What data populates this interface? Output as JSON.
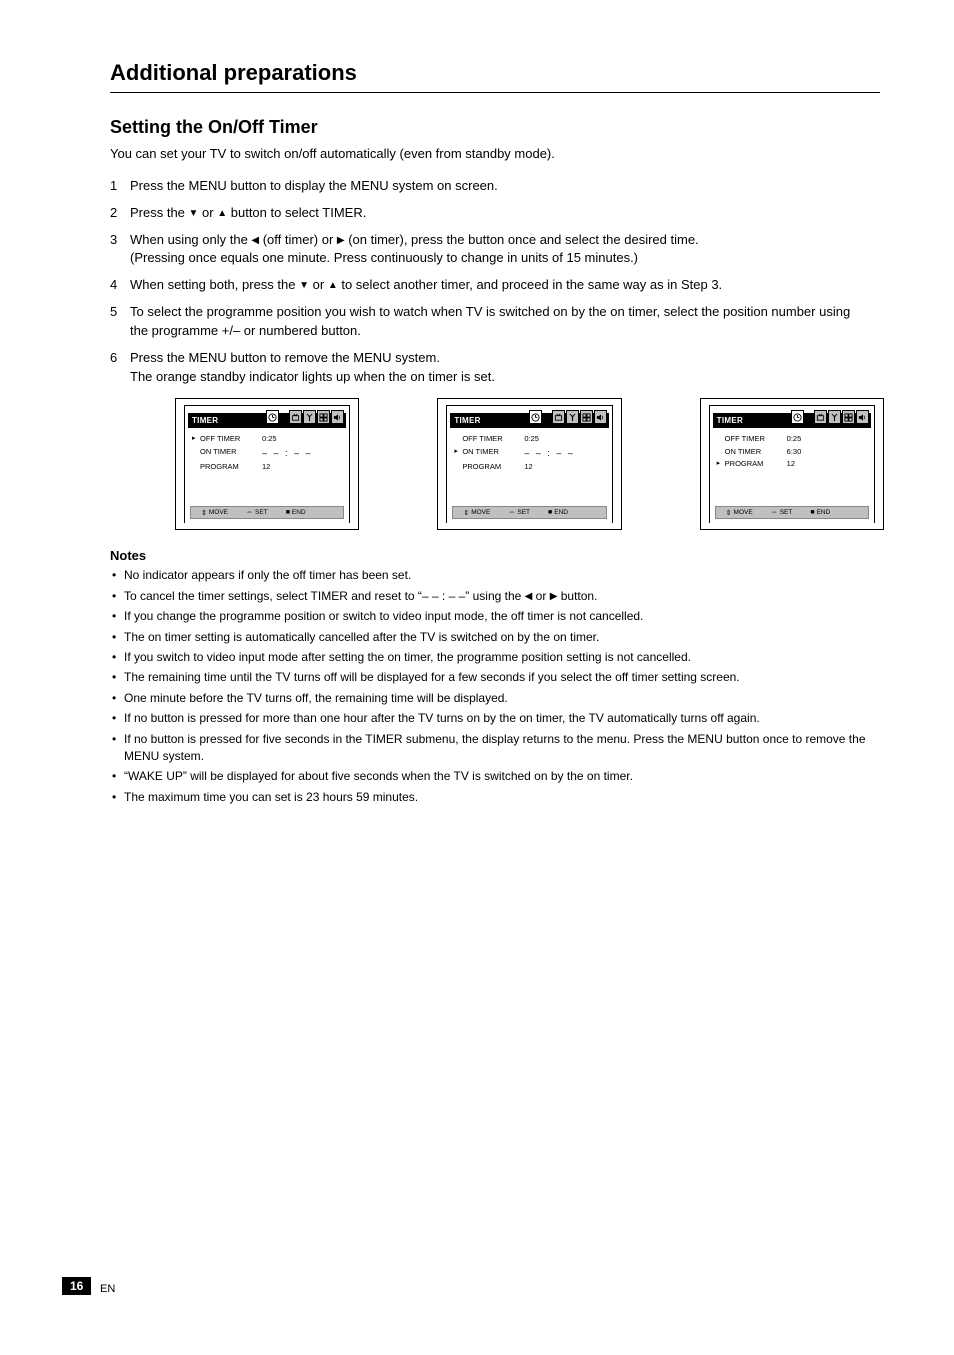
{
  "section_heading": "Additional preparations",
  "feature": {
    "title": "Setting the On/Off Timer",
    "description": "You can set your TV to switch on/off automatically (even from standby mode)."
  },
  "steps": [
    {
      "n": "1",
      "text": "Press the MENU button to display the MENU system on screen."
    },
    {
      "n": "2",
      "text": "Press the <tri>▼</tri> or <tri>▲</tri> button to select TIMER."
    },
    {
      "n": "3",
      "text": "When using only the <tri>◀</tri> (off timer) or <tri>▶</tri> (on timer), press the button once and select the desired time.\n(Pressing once equals one minute. Press continuously to change in units of 15 minutes.)"
    },
    {
      "n": "4",
      "text": "When setting both, press the <tri>▼</tri> or <tri>▲</tri> to select another timer, and proceed in the same way as in Step 3."
    },
    {
      "n": "5",
      "text": "To select the programme position you wish to watch when TV is switched on by the on timer, select the position number using the programme +/– or numbered button."
    },
    {
      "n": "6",
      "text": "Press the MENU button to remove the MENU system.\nThe orange standby indicator lights up when the on timer is set."
    }
  ],
  "menus": {
    "shared": {
      "title": "TIMER",
      "footer": {
        "move": "MOVE",
        "set": "SET",
        "end": "END"
      },
      "icons": [
        "clock",
        "gap",
        "tv",
        "antenna",
        "grid",
        "speaker"
      ]
    },
    "menu1": {
      "lines": [
        {
          "marker": "▸",
          "label": "OFF TIMER",
          "val": "0:25"
        },
        {
          "marker": "",
          "label": "ON TIMER",
          "val": "– – : – –",
          "dashes": true
        },
        {
          "marker": "",
          "label": "PROGRAM",
          "val": "12"
        }
      ]
    },
    "menu2": {
      "lines": [
        {
          "marker": "",
          "label": "OFF TIMER",
          "val": "0:25"
        },
        {
          "marker": "▸",
          "label": "ON TIMER",
          "val": "– – : – –",
          "dashes": true
        },
        {
          "marker": "",
          "label": "PROGRAM",
          "val": "12"
        }
      ]
    },
    "menu3": {
      "lines": [
        {
          "marker": "",
          "label": "OFF TIMER",
          "val": "0:25"
        },
        {
          "marker": "",
          "label": "ON TIMER",
          "val": "6:30"
        },
        {
          "marker": "▸",
          "label": "PROGRAM",
          "val": "12"
        }
      ]
    }
  },
  "notes": {
    "title": "Notes",
    "items": [
      "No indicator appears if only the off timer has been set.",
      "To cancel the timer settings, select TIMER and reset to “– – : – –” using the <tri>◀</tri> or <tri>▶</tri> button.",
      "If you change the programme position or switch to video input mode, the off timer is not cancelled.",
      "The on timer setting is automatically cancelled after the TV is switched on by the on timer.",
      "If you switch to video input mode after setting the on timer, the programme position setting is not cancelled.",
      "The remaining time until the TV turns off will be displayed for a few seconds if you select the off timer setting screen.",
      "One minute before the TV turns off, the remaining time will be displayed.",
      "If no button is pressed for more than one hour after the TV turns on by the on timer, the TV automatically turns off again.",
      "If no button is pressed for five seconds in the TIMER submenu, the display returns to the menu. Press the MENU button once to remove the MENU system.",
      "“WAKE UP” will be displayed for about five seconds when the TV is switched on by the on timer.",
      "The maximum time you can set is 23 hours 59 minutes."
    ]
  },
  "colors": {
    "header_bg": "#000000",
    "header_fg": "#ffffff",
    "footer_bg": "#c0c0c0",
    "icon_box_bg": "#c0c0c0",
    "icon_active_bg": "#ffffff",
    "page_bg": "#ffffff",
    "text": "#000000"
  },
  "typography": {
    "section_title_pt": 22,
    "feature_title_pt": 18,
    "body_pt": 13,
    "notes_pt": 12,
    "menu_text_pt": 8
  },
  "page_number": "16",
  "page_number_suffix": "EN"
}
